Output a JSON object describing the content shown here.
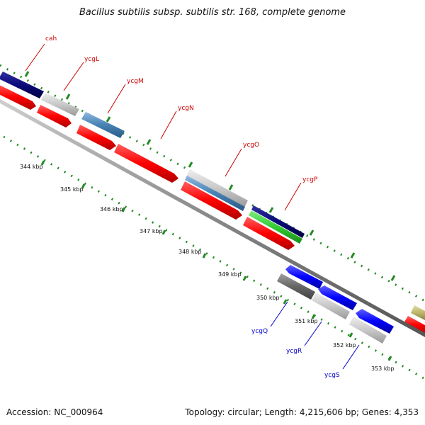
{
  "title": "Bacillus subtilis subsp. subtilis str. 168, complete genome",
  "footer": {
    "accession": "Accession: NC_000964",
    "summary": "Topology: circular; Length: 4,215,606 bp; Genes: 4,353"
  },
  "ticks": [
    "344 kbp",
    "345 kbp",
    "346 kbp",
    "347 kbp",
    "348 kbp",
    "349 kbp",
    "350 kbp",
    "351 kbp",
    "352 kbp",
    "353 kbp"
  ],
  "genes": [
    {
      "name": "cah",
      "color": "#cc0000"
    },
    {
      "name": "ycgL",
      "color": "#cc0000"
    },
    {
      "name": "ycgM",
      "color": "#cc0000"
    },
    {
      "name": "ycgN",
      "color": "#cc0000"
    },
    {
      "name": "ycgO",
      "color": "#cc0000"
    },
    {
      "name": "ycgP",
      "color": "#cc0000"
    },
    {
      "name": "ycgQ",
      "color": "#0000cc"
    },
    {
      "name": "ycgR",
      "color": "#0000cc"
    },
    {
      "name": "ycgS",
      "color": "#0000cc"
    }
  ],
  "colors": {
    "forward_cds": "#ff0000",
    "dark_navy": "#0a0a7a",
    "light_gray": "#c8c8c8",
    "steel_blue": "#4682b4",
    "green": "#33cc33",
    "blue": "#0000ff",
    "dark_gray": "#666666",
    "olive": "#bdb76b",
    "backbone": "#888888",
    "dots": "#228b22"
  }
}
